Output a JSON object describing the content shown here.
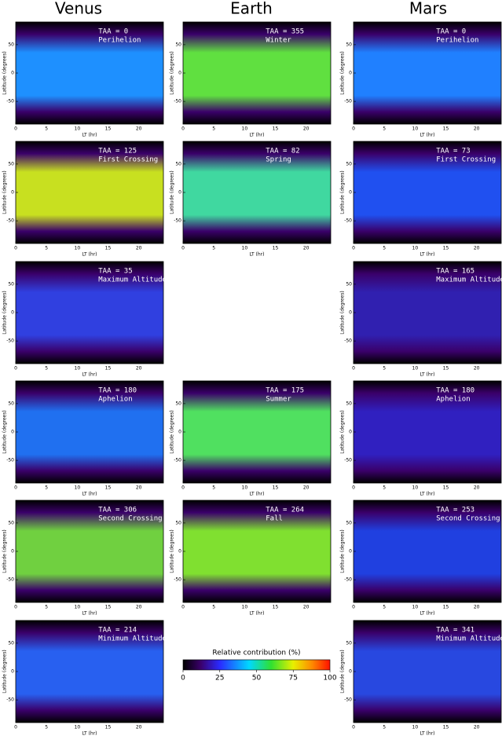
{
  "columns": [
    "Venus",
    "Earth",
    "Mars"
  ],
  "chart_data": [
    {
      "type": "contour",
      "annotations": [
        "TAA = 0",
        "Perihelion"
      ],
      "xlabel": "LT (hr)",
      "ylabel": "Latitude (degrees)",
      "xlim": [
        0,
        24
      ],
      "ylim": [
        -90,
        90
      ],
      "xticks": [
        0,
        5,
        10,
        15,
        20
      ],
      "yticks": [
        -50,
        0,
        50
      ]
    },
    {
      "type": "contour",
      "annotations": [
        "TAA = 125",
        "First Crossing"
      ],
      "xlabel": "LT (hr)",
      "ylabel": "Latitude (degrees)",
      "xlim": [
        0,
        24
      ],
      "ylim": [
        -90,
        90
      ],
      "xticks": [
        0,
        5,
        10,
        15,
        20
      ],
      "yticks": [
        -50,
        0,
        50
      ]
    },
    {
      "type": "contour",
      "annotations": [
        "TAA = 35",
        "Maximum Altitude"
      ],
      "xlabel": "LT (hr)",
      "ylabel": "Latitude (degrees)",
      "xlim": [
        0,
        24
      ],
      "ylim": [
        -90,
        90
      ],
      "xticks": [
        0,
        5,
        10,
        15,
        20
      ],
      "yticks": [
        -50,
        0,
        50
      ]
    },
    {
      "type": "contour",
      "annotations": [
        "TAA = 180",
        "Aphelion"
      ],
      "xlabel": "LT (hr)",
      "ylabel": "Latitude (degrees)",
      "xlim": [
        0,
        24
      ],
      "ylim": [
        -90,
        90
      ],
      "xticks": [
        0,
        5,
        10,
        15,
        20
      ],
      "yticks": [
        -50,
        0,
        50
      ]
    },
    {
      "type": "contour",
      "annotations": [
        "TAA = 306",
        "Second Crossing"
      ],
      "xlabel": "LT (hr)",
      "ylabel": "Latitude (degrees)",
      "xlim": [
        0,
        24
      ],
      "ylim": [
        -90,
        90
      ],
      "xticks": [
        0,
        5,
        10,
        15,
        20
      ],
      "yticks": [
        -50,
        0,
        50
      ]
    },
    {
      "type": "contour",
      "annotations": [
        "TAA = 214",
        "Minimum Altitude"
      ],
      "xlabel": "LT (hr)",
      "ylabel": "Latitude (degrees)",
      "xlim": [
        0,
        24
      ],
      "ylim": [
        -90,
        90
      ],
      "xticks": [
        0,
        5,
        10,
        15,
        20
      ],
      "yticks": [
        -50,
        0,
        50
      ]
    },
    {
      "type": "contour",
      "annotations": [
        "TAA = 355",
        "Winter"
      ],
      "xlabel": "LT (hr)",
      "ylabel": "Latitude (degrees)",
      "xlim": [
        0,
        24
      ],
      "ylim": [
        -90,
        90
      ],
      "xticks": [
        0,
        5,
        10,
        15,
        20
      ],
      "yticks": [
        -50,
        0,
        50
      ]
    },
    {
      "type": "contour",
      "annotations": [
        "TAA = 82",
        "Spring"
      ],
      "xlabel": "LT (hr)",
      "ylabel": "Latitude (degrees)",
      "xlim": [
        0,
        24
      ],
      "ylim": [
        -90,
        90
      ],
      "xticks": [
        0,
        5,
        10,
        15,
        20
      ],
      "yticks": [
        -50,
        0,
        50
      ]
    },
    {
      "type": "contour",
      "annotations": [
        "TAA = 175",
        "Summer"
      ],
      "xlabel": "LT (hr)",
      "ylabel": "Latitude (degrees)",
      "xlim": [
        0,
        24
      ],
      "ylim": [
        -90,
        90
      ],
      "xticks": [
        0,
        5,
        10,
        15,
        20
      ],
      "yticks": [
        -50,
        0,
        50
      ]
    },
    {
      "type": "contour",
      "annotations": [
        "TAA = 264",
        "Fall"
      ],
      "xlabel": "LT (hr)",
      "ylabel": "Latitude (degrees)",
      "xlim": [
        0,
        24
      ],
      "ylim": [
        -90,
        90
      ],
      "xticks": [
        0,
        5,
        10,
        15,
        20
      ],
      "yticks": [
        -50,
        0,
        50
      ]
    },
    {
      "type": "contour",
      "annotations": [
        "TAA = 0",
        "Perihelion"
      ],
      "xlabel": "LT (hr)",
      "ylabel": "Latitude (degrees)",
      "xlim": [
        0,
        24
      ],
      "ylim": [
        -90,
        90
      ],
      "xticks": [
        0,
        5,
        10,
        15,
        20
      ],
      "yticks": [
        -50,
        0,
        50
      ]
    },
    {
      "type": "contour",
      "annotations": [
        "TAA = 73",
        "First Crossing"
      ],
      "xlabel": "LT (hr)",
      "ylabel": "Latitude (degrees)",
      "xlim": [
        0,
        24
      ],
      "ylim": [
        -90,
        90
      ],
      "xticks": [
        0,
        5,
        10,
        15,
        20
      ],
      "yticks": [
        -50,
        0,
        50
      ]
    },
    {
      "type": "contour",
      "annotations": [
        "TAA = 165",
        "Maximum Altitude"
      ],
      "xlabel": "LT (hr)",
      "ylabel": "Latitude (degrees)",
      "xlim": [
        0,
        24
      ],
      "ylim": [
        -90,
        90
      ],
      "xticks": [
        0,
        5,
        10,
        15,
        20
      ],
      "yticks": [
        -50,
        0,
        50
      ]
    },
    {
      "type": "contour",
      "annotations": [
        "TAA = 180",
        "Aphelion"
      ],
      "xlabel": "LT (hr)",
      "ylabel": "Latitude (degrees)",
      "xlim": [
        0,
        24
      ],
      "ylim": [
        -90,
        90
      ],
      "xticks": [
        0,
        5,
        10,
        15,
        20
      ],
      "yticks": [
        -50,
        0,
        50
      ]
    },
    {
      "type": "contour",
      "annotations": [
        "TAA = 253",
        "Second Crossing"
      ],
      "xlabel": "LT (hr)",
      "ylabel": "Latitude (degrees)",
      "xlim": [
        0,
        24
      ],
      "ylim": [
        -90,
        90
      ],
      "xticks": [
        0,
        5,
        10,
        15,
        20
      ],
      "yticks": [
        -50,
        0,
        50
      ]
    },
    {
      "type": "contour",
      "annotations": [
        "TAA = 341",
        "Minimum Altitude"
      ],
      "xlabel": "LT (hr)",
      "ylabel": "Latitude (degrees)",
      "xlim": [
        0,
        24
      ],
      "ylim": [
        -90,
        90
      ],
      "xticks": [
        0,
        5,
        10,
        15,
        20
      ],
      "yticks": [
        -50,
        0,
        50
      ]
    }
  ],
  "colorbar": {
    "title": "Relative contribution (%)",
    "lim": [
      0,
      100
    ],
    "ticks": [
      0,
      25,
      50,
      75,
      100
    ]
  }
}
